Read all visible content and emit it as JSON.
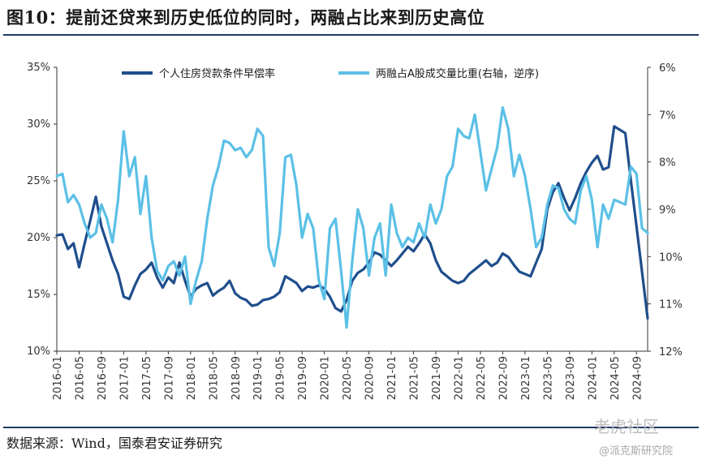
{
  "figure": {
    "title": "图10：提前还贷来到历史低位的同时，两融占比来到历史高位",
    "source": "数据来源：Wind，国泰君安证券研究",
    "watermark_main": "老虎社区",
    "watermark_sub": "@派克斯研究院"
  },
  "colors": {
    "series1": "#1f4e8c",
    "series2": "#5bc0e6",
    "rule": "#1f3b63"
  },
  "chart_data": {
    "type": "line",
    "title": "",
    "x_start": "2016-01",
    "x_end": "2024-11",
    "x_tick_labels": [
      "2016-01",
      "2016-05",
      "2016-09",
      "2017-01",
      "2017-05",
      "2017-09",
      "2018-01",
      "2018-05",
      "2018-09",
      "2019-01",
      "2019-05",
      "2019-09",
      "2020-01",
      "2020-05",
      "2020-09",
      "2021-01",
      "2021-05",
      "2021-09",
      "2022-01",
      "2022-05",
      "2022-09",
      "2023-01",
      "2023-05",
      "2023-09",
      "2024-01",
      "2024-05",
      "2024-09"
    ],
    "y_left": {
      "ticks": [
        "35%",
        "30%",
        "25%",
        "20%",
        "15%",
        "10%"
      ],
      "min": 10,
      "max": 35
    },
    "y_right": {
      "ticks": [
        "6%",
        "7%",
        "8%",
        "9%",
        "10%",
        "11%",
        "12%"
      ],
      "min": 6,
      "max": 12,
      "reversed": true
    },
    "series": [
      {
        "name": "个人住房贷款条件早偿率",
        "axis": "left",
        "points": [
          [
            "2016-01",
            20.2
          ],
          [
            "2016-02",
            20.3
          ],
          [
            "2016-03",
            19.0
          ],
          [
            "2016-04",
            19.5
          ],
          [
            "2016-05",
            17.4
          ],
          [
            "2016-06",
            19.5
          ],
          [
            "2016-07",
            21.5
          ],
          [
            "2016-08",
            23.6
          ],
          [
            "2016-09",
            21.0
          ],
          [
            "2016-10",
            19.5
          ],
          [
            "2016-11",
            18.0
          ],
          [
            "2016-12",
            16.8
          ],
          [
            "2017-01",
            14.8
          ],
          [
            "2017-02",
            14.6
          ],
          [
            "2017-03",
            15.8
          ],
          [
            "2017-04",
            16.8
          ],
          [
            "2017-05",
            17.2
          ],
          [
            "2017-06",
            17.8
          ],
          [
            "2017-07",
            16.5
          ],
          [
            "2017-08",
            15.6
          ],
          [
            "2017-09",
            16.5
          ],
          [
            "2017-10",
            16.0
          ],
          [
            "2017-11",
            17.8
          ],
          [
            "2017-12",
            16.2
          ],
          [
            "2018-01",
            14.8
          ],
          [
            "2018-02",
            15.5
          ],
          [
            "2018-03",
            15.8
          ],
          [
            "2018-04",
            16.0
          ],
          [
            "2018-05",
            14.9
          ],
          [
            "2018-06",
            15.3
          ],
          [
            "2018-07",
            15.6
          ],
          [
            "2018-08",
            16.2
          ],
          [
            "2018-09",
            15.1
          ],
          [
            "2018-10",
            14.7
          ],
          [
            "2018-11",
            14.5
          ],
          [
            "2018-12",
            14.0
          ],
          [
            "2019-01",
            14.1
          ],
          [
            "2019-02",
            14.5
          ],
          [
            "2019-03",
            14.6
          ],
          [
            "2019-04",
            14.8
          ],
          [
            "2019-05",
            15.2
          ],
          [
            "2019-06",
            16.6
          ],
          [
            "2019-07",
            16.3
          ],
          [
            "2019-08",
            16.0
          ],
          [
            "2019-09",
            15.3
          ],
          [
            "2019-10",
            15.7
          ],
          [
            "2019-11",
            15.6
          ],
          [
            "2019-12",
            15.8
          ],
          [
            "2020-01",
            15.5
          ],
          [
            "2020-02",
            14.8
          ],
          [
            "2020-03",
            13.8
          ],
          [
            "2020-04",
            13.5
          ],
          [
            "2020-05",
            14.5
          ],
          [
            "2020-06",
            16.2
          ],
          [
            "2020-07",
            16.9
          ],
          [
            "2020-08",
            17.2
          ],
          [
            "2020-09",
            17.8
          ],
          [
            "2020-10",
            18.7
          ],
          [
            "2020-11",
            18.5
          ],
          [
            "2020-12",
            18.0
          ],
          [
            "2021-01",
            17.5
          ],
          [
            "2021-02",
            18.0
          ],
          [
            "2021-03",
            18.6
          ],
          [
            "2021-04",
            19.2
          ],
          [
            "2021-05",
            18.8
          ],
          [
            "2021-06",
            19.5
          ],
          [
            "2021-07",
            20.3
          ],
          [
            "2021-08",
            19.5
          ],
          [
            "2021-09",
            18.0
          ],
          [
            "2021-10",
            17.0
          ],
          [
            "2021-11",
            16.6
          ],
          [
            "2021-12",
            16.2
          ],
          [
            "2022-01",
            16.0
          ],
          [
            "2022-02",
            16.2
          ],
          [
            "2022-03",
            16.8
          ],
          [
            "2022-04",
            17.2
          ],
          [
            "2022-05",
            17.6
          ],
          [
            "2022-06",
            18.0
          ],
          [
            "2022-07",
            17.5
          ],
          [
            "2022-08",
            17.8
          ],
          [
            "2022-09",
            18.6
          ],
          [
            "2022-10",
            18.3
          ],
          [
            "2022-11",
            17.6
          ],
          [
            "2022-12",
            17.0
          ],
          [
            "2023-01",
            16.8
          ],
          [
            "2023-02",
            16.6
          ],
          [
            "2023-03",
            17.8
          ],
          [
            "2023-04",
            19.0
          ],
          [
            "2023-05",
            22.5
          ],
          [
            "2023-06",
            24.0
          ],
          [
            "2023-07",
            24.8
          ],
          [
            "2023-08",
            23.5
          ],
          [
            "2023-09",
            22.4
          ],
          [
            "2023-10",
            23.5
          ],
          [
            "2023-11",
            24.8
          ],
          [
            "2023-12",
            25.8
          ],
          [
            "2024-01",
            26.6
          ],
          [
            "2024-02",
            27.2
          ],
          [
            "2024-03",
            26.0
          ],
          [
            "2024-04",
            26.2
          ],
          [
            "2024-05",
            29.8
          ],
          [
            "2024-06",
            29.5
          ],
          [
            "2024-07",
            29.2
          ],
          [
            "2024-08",
            25.0
          ],
          [
            "2024-09",
            21.0
          ],
          [
            "2024-10",
            17.0
          ],
          [
            "2024-11",
            12.9
          ]
        ]
      },
      {
        "name": "两融占A股成交量比重(右轴，逆序)",
        "axis": "right",
        "points": [
          [
            "2016-01",
            8.3
          ],
          [
            "2016-02",
            8.25
          ],
          [
            "2016-03",
            8.85
          ],
          [
            "2016-04",
            8.7
          ],
          [
            "2016-05",
            8.9
          ],
          [
            "2016-06",
            9.3
          ],
          [
            "2016-07",
            9.6
          ],
          [
            "2016-08",
            9.5
          ],
          [
            "2016-09",
            8.9
          ],
          [
            "2016-10",
            9.2
          ],
          [
            "2016-11",
            9.7
          ],
          [
            "2016-12",
            8.8
          ],
          [
            "2017-01",
            7.35
          ],
          [
            "2017-02",
            8.3
          ],
          [
            "2017-03",
            7.9
          ],
          [
            "2017-04",
            9.1
          ],
          [
            "2017-05",
            8.3
          ],
          [
            "2017-06",
            9.6
          ],
          [
            "2017-07",
            10.3
          ],
          [
            "2017-08",
            10.5
          ],
          [
            "2017-09",
            10.2
          ],
          [
            "2017-10",
            10.1
          ],
          [
            "2017-11",
            10.4
          ],
          [
            "2017-12",
            10.0
          ],
          [
            "2018-01",
            11.0
          ],
          [
            "2018-02",
            10.5
          ],
          [
            "2018-03",
            10.1
          ],
          [
            "2018-04",
            9.2
          ],
          [
            "2018-05",
            8.5
          ],
          [
            "2018-06",
            8.1
          ],
          [
            "2018-07",
            7.55
          ],
          [
            "2018-08",
            7.6
          ],
          [
            "2018-09",
            7.75
          ],
          [
            "2018-10",
            7.7
          ],
          [
            "2018-11",
            7.9
          ],
          [
            "2018-12",
            7.75
          ],
          [
            "2019-01",
            7.3
          ],
          [
            "2019-02",
            7.45
          ],
          [
            "2019-03",
            9.8
          ],
          [
            "2019-04",
            10.2
          ],
          [
            "2019-05",
            9.5
          ],
          [
            "2019-06",
            7.9
          ],
          [
            "2019-07",
            7.85
          ],
          [
            "2019-08",
            8.5
          ],
          [
            "2019-09",
            9.6
          ],
          [
            "2019-10",
            9.1
          ],
          [
            "2019-11",
            9.4
          ],
          [
            "2019-12",
            10.5
          ],
          [
            "2020-01",
            10.9
          ],
          [
            "2020-02",
            9.4
          ],
          [
            "2020-03",
            9.2
          ],
          [
            "2020-04",
            10.3
          ],
          [
            "2020-05",
            11.5
          ],
          [
            "2020-06",
            10.1
          ],
          [
            "2020-07",
            9.0
          ],
          [
            "2020-08",
            9.4
          ],
          [
            "2020-09",
            10.4
          ],
          [
            "2020-10",
            9.6
          ],
          [
            "2020-11",
            9.3
          ],
          [
            "2020-12",
            10.4
          ],
          [
            "2021-01",
            8.9
          ],
          [
            "2021-02",
            9.5
          ],
          [
            "2021-03",
            9.8
          ],
          [
            "2021-04",
            9.6
          ],
          [
            "2021-05",
            9.7
          ],
          [
            "2021-06",
            9.3
          ],
          [
            "2021-07",
            9.6
          ],
          [
            "2021-08",
            8.9
          ],
          [
            "2021-09",
            9.3
          ],
          [
            "2021-10",
            9.0
          ],
          [
            "2021-11",
            8.3
          ],
          [
            "2021-12",
            8.1
          ],
          [
            "2022-01",
            7.3
          ],
          [
            "2022-02",
            7.45
          ],
          [
            "2022-03",
            7.5
          ],
          [
            "2022-04",
            7.0
          ],
          [
            "2022-05",
            7.8
          ],
          [
            "2022-06",
            8.6
          ],
          [
            "2022-07",
            8.15
          ],
          [
            "2022-08",
            7.7
          ],
          [
            "2022-09",
            6.85
          ],
          [
            "2022-10",
            7.3
          ],
          [
            "2022-11",
            8.3
          ],
          [
            "2022-12",
            7.85
          ],
          [
            "2023-01",
            8.3
          ],
          [
            "2023-02",
            9.0
          ],
          [
            "2023-03",
            9.8
          ],
          [
            "2023-04",
            9.6
          ],
          [
            "2023-05",
            8.9
          ],
          [
            "2023-06",
            8.5
          ],
          [
            "2023-07",
            8.55
          ],
          [
            "2023-08",
            9.0
          ],
          [
            "2023-09",
            9.2
          ],
          [
            "2023-10",
            9.3
          ],
          [
            "2023-11",
            8.6
          ],
          [
            "2023-12",
            8.3
          ],
          [
            "2024-01",
            8.8
          ],
          [
            "2024-02",
            9.8
          ],
          [
            "2024-03",
            8.9
          ],
          [
            "2024-04",
            9.2
          ],
          [
            "2024-05",
            8.8
          ],
          [
            "2024-06",
            8.85
          ],
          [
            "2024-07",
            8.9
          ],
          [
            "2024-08",
            8.1
          ],
          [
            "2024-09",
            8.25
          ],
          [
            "2024-10",
            9.4
          ],
          [
            "2024-11",
            9.5
          ]
        ]
      }
    ]
  }
}
